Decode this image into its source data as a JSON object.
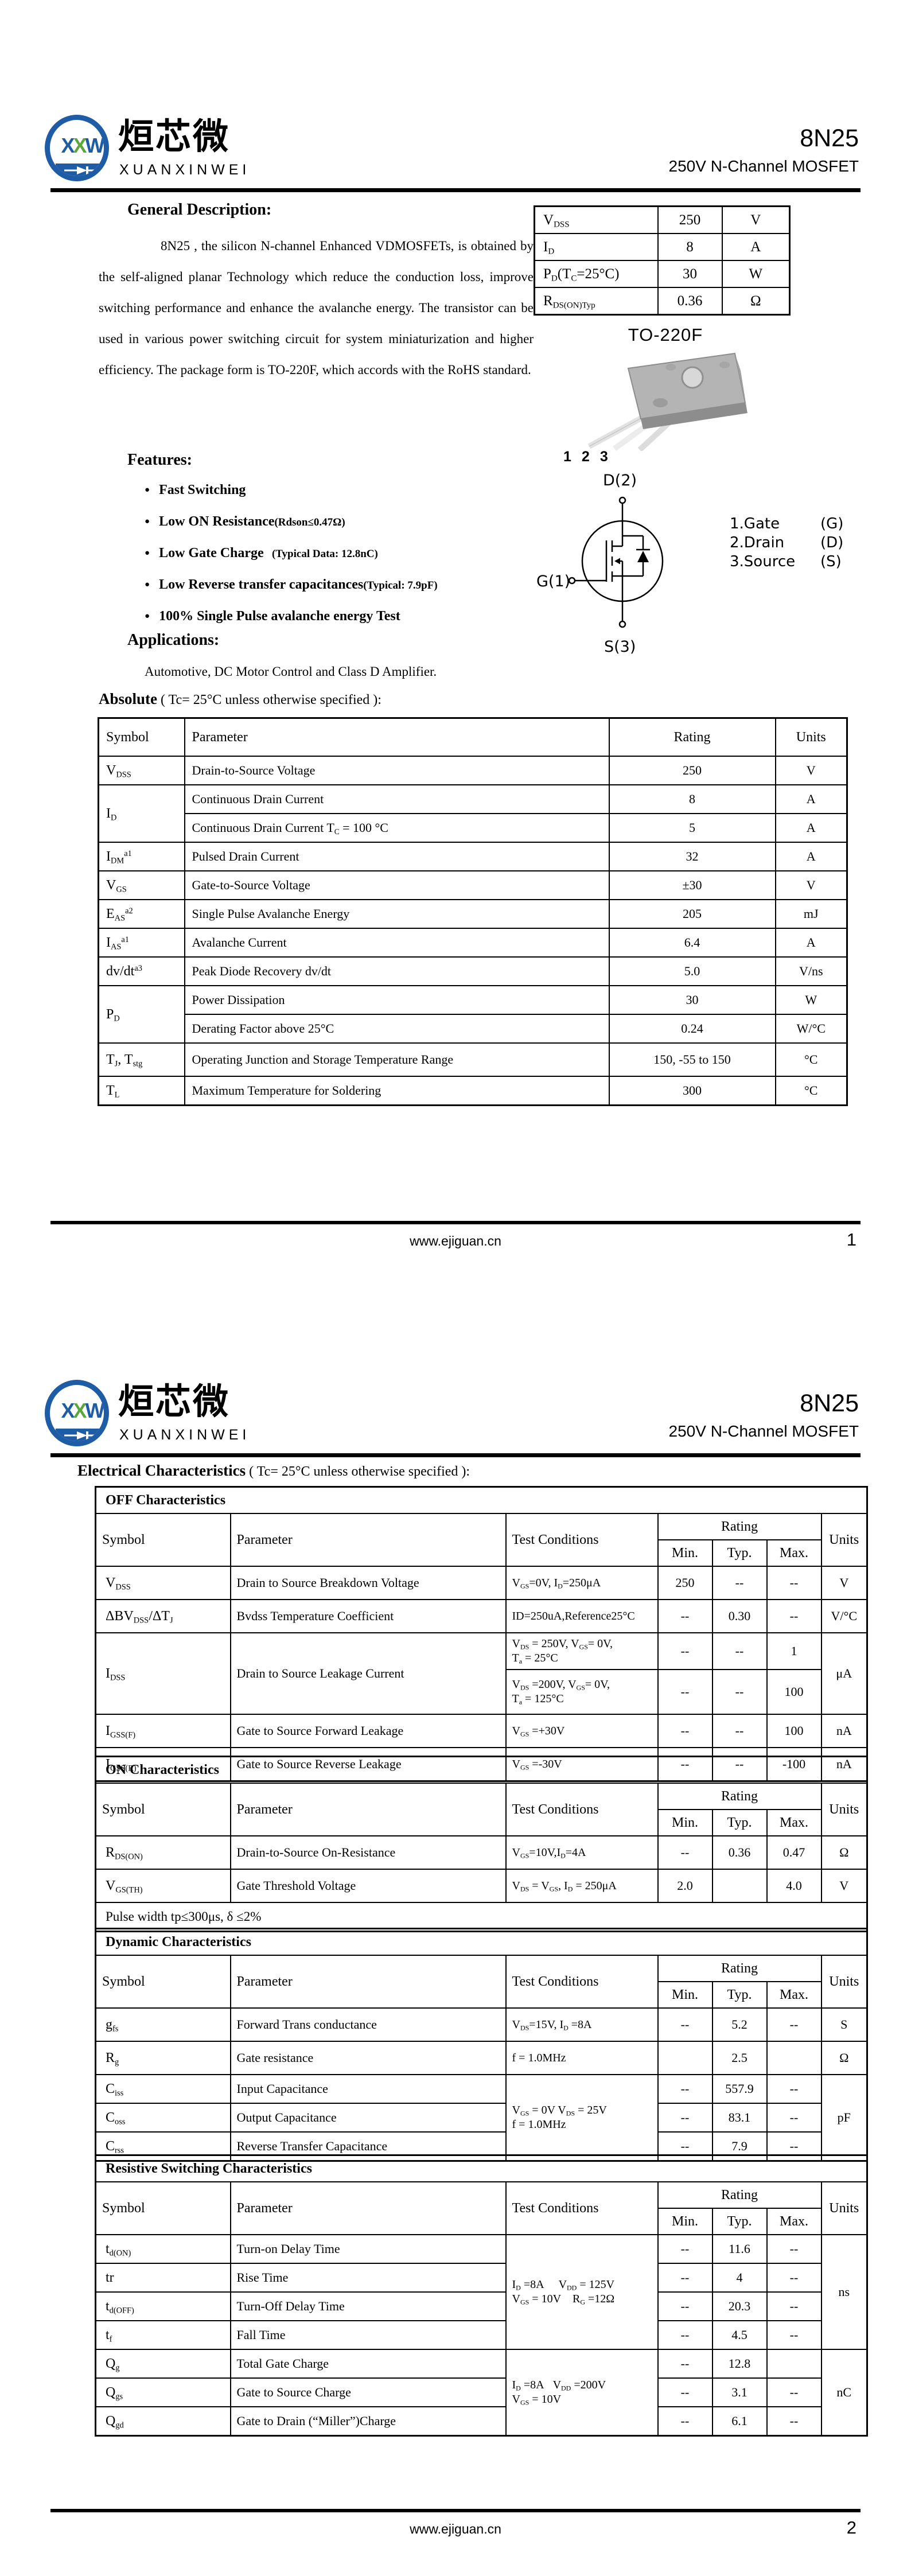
{
  "header": {
    "part": "8N25",
    "subtitle": "250V N-Channel MOSFET",
    "logo_letters": [
      "X",
      "X",
      "W"
    ],
    "brand_cn": "烜芯微",
    "brand_en": "XUANXINWEI"
  },
  "footer": {
    "site": "www.ejiguan.cn",
    "pages": [
      "1",
      "2"
    ]
  },
  "page1": {
    "quick": {
      "rows": [
        {
          "sym": [
            {
              "t": "V"
            },
            {
              "sub": "DSS"
            }
          ],
          "val": "250",
          "unit": "V"
        },
        {
          "sym": [
            {
              "t": "I"
            },
            {
              "sub": "D"
            }
          ],
          "val": "8",
          "unit": "A"
        },
        {
          "sym": [
            {
              "t": "P"
            },
            {
              "sub": "D"
            },
            {
              "t": "(T"
            },
            {
              "sub": "C"
            },
            {
              "t": "=25°C)"
            }
          ],
          "val": "30",
          "unit": "W"
        },
        {
          "sym": [
            {
              "t": "R"
            },
            {
              "sub": "DS(ON)Typ"
            }
          ],
          "val": "0.36",
          "unit": "Ω"
        }
      ]
    },
    "package_name": "TO-220F",
    "pins": [
      "1",
      "2",
      "3"
    ],
    "symbol_labels": {
      "drain": "D(2)",
      "gate": "G(1)",
      "source": "S(3)"
    },
    "pin_legend": [
      {
        "name": "1.Gate",
        "code": "(G)"
      },
      {
        "name": "2.Drain",
        "code": "(D)"
      },
      {
        "name": "3.Source",
        "code": "(S)"
      }
    ],
    "general_heading": "General Description:",
    "description": "8N25 , the silicon N-channel Enhanced VDMOSFETs, is obtained by the self-aligned planar Technology which reduce the conduction loss, improve switching performance and enhance the avalanche energy. The transistor can be used in various power switching circuit for system miniaturization and higher efficiency. The package form is TO-220F, which accords with the RoHS standard.",
    "features_heading": "Features:",
    "features": [
      {
        "main": "Fast Switching",
        "note": ""
      },
      {
        "main": "Low ON Resistance",
        "note": "(Rdson≤0.47Ω)"
      },
      {
        "main": "Low Gate Charge",
        "note": "   (Typical Data: 12.8nC)"
      },
      {
        "main": "Low Reverse transfer capacitances",
        "note": "(Typical: 7.9pF)"
      },
      {
        "main": "100% Single Pulse avalanche energy Test",
        "note": ""
      }
    ],
    "applications_heading": "Applications:",
    "applications_text": "Automotive, DC Motor Control and Class D Amplifier.",
    "abs_heading_bold": "Absolute",
    "abs_heading_rest": "( Tc= 25°C  unless otherwise specified ):",
    "abs": {
      "headers": [
        "Symbol",
        "Parameter",
        "Rating",
        "Units"
      ],
      "rows": [
        {
          "sym": [
            {
              "t": "V"
            },
            {
              "sub": "DSS"
            }
          ],
          "param": "Drain-to-Source Voltage",
          "rating": "250",
          "units": "V"
        },
        {
          "sym": [
            {
              "t": "I"
            },
            {
              "sub": "D"
            }
          ],
          "param": "Continuous Drain Current",
          "rating": "8",
          "units": "A"
        },
        {
          "param": [
            {
              "t": "Continuous Drain Current T"
            },
            {
              "sub": "C"
            },
            {
              "t": " = 100 °C"
            }
          ],
          "rating": "5",
          "units": "A"
        },
        {
          "sym": [
            {
              "t": "I"
            },
            {
              "sub": "DM"
            },
            {
              "sup": "a1"
            }
          ],
          "param": "Pulsed Drain Current",
          "rating": "32",
          "units": "A"
        },
        {
          "sym": [
            {
              "t": "V"
            },
            {
              "sub": "GS"
            }
          ],
          "param": "Gate-to-Source Voltage",
          "rating": "±30",
          "units": "V"
        },
        {
          "sym": [
            {
              "t": "E"
            },
            {
              "sub": "AS"
            },
            {
              "sup": "a2"
            }
          ],
          "param": "Single Pulse Avalanche Energy",
          "rating": "205",
          "units": "mJ"
        },
        {
          "sym": [
            {
              "t": "I"
            },
            {
              "sub": "AS"
            },
            {
              "sup": "a1"
            }
          ],
          "param": "Avalanche Current",
          "rating": "6.4",
          "units": "A"
        },
        {
          "sym": [
            {
              "t": "dv/dt"
            },
            {
              "sup": "a3"
            }
          ],
          "param": "Peak Diode Recovery dv/dt",
          "rating": "5.0",
          "units": "V/ns"
        },
        {
          "sym": [
            {
              "t": "P"
            },
            {
              "sub": "D"
            }
          ],
          "param": "Power Dissipation",
          "rating": "30",
          "units": "W"
        },
        {
          "param": "Derating Factor above 25°C",
          "rating": "0.24",
          "units": "W/°C"
        },
        {
          "sym": [
            {
              "t": "T"
            },
            {
              "sub": "J"
            },
            {
              "t": ",  T"
            },
            {
              "sub": "stg"
            }
          ],
          "param": "Operating Junction and Storage Temperature Range",
          "rating": "150,  -55 to 150",
          "units": "°C"
        },
        {
          "sym": [
            {
              "t": "T"
            },
            {
              "sub": "L"
            }
          ],
          "param": "Maximum Temperature for Soldering",
          "rating": "300",
          "units": "°C"
        }
      ]
    }
  },
  "page2": {
    "elec_heading_bold": "Electrical Characteristics",
    "elec_heading_rest": "( Tc= 25°C  unless otherwise specified ):",
    "col": {
      "symbol": "Symbol",
      "parameter": "Parameter",
      "test": "Test Conditions",
      "rating": "Rating",
      "min": "Min.",
      "typ": "Typ.",
      "max": "Max.",
      "units": "Units"
    },
    "off": {
      "title": "OFF Characteristics",
      "rows": [
        {
          "sym": [
            {
              "t": "V"
            },
            {
              "sub": "DSS"
            }
          ],
          "param": "Drain to Source Breakdown Voltage",
          "test": [
            {
              "t": "V"
            },
            {
              "sub": "GS"
            },
            {
              "t": "=0V, I"
            },
            {
              "sub": "D"
            },
            {
              "t": "=250μA"
            }
          ],
          "min": "250",
          "typ": "--",
          "max": "--",
          "units": "V"
        },
        {
          "sym": [
            {
              "t": "ΔBV"
            },
            {
              "sub": "DSS"
            },
            {
              "t": "/ΔT"
            },
            {
              "sub": "J"
            }
          ],
          "param": "Bvdss Temperature Coefficient",
          "test": "ID=250uA,Reference25°C",
          "min": "--",
          "typ": "0.30",
          "max": "--",
          "units": "V/°C"
        },
        {
          "sym": [
            {
              "t": "I"
            },
            {
              "sub": "DSS"
            }
          ],
          "param": "Drain to Source Leakage Current",
          "test": [
            {
              "t": "V"
            },
            {
              "sub": "DS"
            },
            {
              "t": " = 250V, V"
            },
            {
              "sub": "GS"
            },
            {
              "t": "= 0V,"
            },
            {
              "br": true
            },
            {
              "t": "T"
            },
            {
              "sub": "a"
            },
            {
              "t": " = 25°C"
            }
          ],
          "min": "--",
          "typ": "--",
          "max": "1",
          "units": "μA"
        },
        {
          "test": [
            {
              "t": "V"
            },
            {
              "sub": "DS"
            },
            {
              "t": " =200V, V"
            },
            {
              "sub": "GS"
            },
            {
              "t": "= 0V,"
            },
            {
              "br": true
            },
            {
              "t": "T"
            },
            {
              "sub": "a"
            },
            {
              "t": " = 125°C"
            }
          ],
          "min": "--",
          "typ": "--",
          "max": "100"
        },
        {
          "sym": [
            {
              "t": "I"
            },
            {
              "sub": "GSS(F)"
            }
          ],
          "param": "Gate to Source Forward Leakage",
          "test": [
            {
              "t": "V"
            },
            {
              "sub": "GS"
            },
            {
              "t": " =+30V"
            }
          ],
          "min": "--",
          "typ": "--",
          "max": "100",
          "units": "nA"
        },
        {
          "sym": [
            {
              "t": "I"
            },
            {
              "sub": "GSS(R)"
            }
          ],
          "param": "Gate to Source Reverse Leakage",
          "test": [
            {
              "t": "V"
            },
            {
              "sub": "GS"
            },
            {
              "t": " =-30V"
            }
          ],
          "min": "--",
          "typ": "--",
          "max": "-100",
          "units": "nA"
        }
      ]
    },
    "on": {
      "title": "ON Characteristics",
      "rows": [
        {
          "sym": [
            {
              "t": "R"
            },
            {
              "sub": "DS(ON)"
            }
          ],
          "param": "Drain-to-Source On-Resistance",
          "test": [
            {
              "t": "V"
            },
            {
              "sub": "GS"
            },
            {
              "t": "=10V,I"
            },
            {
              "sub": "D"
            },
            {
              "t": "=4A"
            }
          ],
          "min": "--",
          "typ": "0.36",
          "max": "0.47",
          "units": "Ω"
        },
        {
          "sym": [
            {
              "t": "V"
            },
            {
              "sub": "GS(TH)"
            }
          ],
          "param": "Gate Threshold Voltage",
          "test": [
            {
              "t": "V"
            },
            {
              "sub": "DS"
            },
            {
              "t": " = V"
            },
            {
              "sub": "GS"
            },
            {
              "t": ", I"
            },
            {
              "sub": "D"
            },
            {
              "t": " = 250μA"
            }
          ],
          "min": "2.0",
          "typ": "",
          "max": "4.0",
          "units": "V"
        }
      ],
      "note": "Pulse width tp≤300μs, δ ≤2%"
    },
    "dyn": {
      "title": "Dynamic Characteristics",
      "rows": [
        {
          "sym": [
            {
              "t": "g"
            },
            {
              "sub": "fs"
            }
          ],
          "param": "Forward Trans conductance",
          "test": [
            {
              "t": "V"
            },
            {
              "sub": "DS"
            },
            {
              "t": "=15V, I"
            },
            {
              "sub": "D"
            },
            {
              "t": " =8A"
            }
          ],
          "min": "--",
          "typ": "5.2",
          "max": "--",
          "units": "S"
        },
        {
          "sym": [
            {
              "t": "R"
            },
            {
              "sub": "g"
            }
          ],
          "param": "Gate resistance",
          "test": "f = 1.0MHz",
          "min": "",
          "typ": "2.5",
          "max": "",
          "units": "Ω"
        },
        {
          "sym": [
            {
              "t": "C"
            },
            {
              "sub": "iss"
            }
          ],
          "param": "Input Capacitance",
          "test": [
            {
              "t": "V"
            },
            {
              "sub": "GS"
            },
            {
              "t": " = 0V V"
            },
            {
              "sub": "DS"
            },
            {
              "t": " = 25V"
            },
            {
              "br": true
            },
            {
              "t": "f = 1.0MHz"
            }
          ],
          "min": "--",
          "typ": "557.9",
          "max": "--",
          "units": "pF"
        },
        {
          "sym": [
            {
              "t": "C"
            },
            {
              "sub": "oss"
            }
          ],
          "param": "Output Capacitance",
          "min": "--",
          "typ": "83.1",
          "max": "--"
        },
        {
          "sym": [
            {
              "t": "C"
            },
            {
              "sub": "rss"
            }
          ],
          "param": "Reverse Transfer Capacitance",
          "min": "--",
          "typ": "7.9",
          "max": "--"
        }
      ]
    },
    "sw": {
      "title": "Resistive Switching Characteristics",
      "rows": [
        {
          "sym": [
            {
              "t": "t"
            },
            {
              "sub": "d(ON)"
            }
          ],
          "param": "Turn-on Delay Time",
          "test": [
            {
              "t": "I"
            },
            {
              "sub": "D"
            },
            {
              "t": " =8A     V"
            },
            {
              "sub": "DD"
            },
            {
              "t": " = 125V"
            },
            {
              "br": true
            },
            {
              "t": "V"
            },
            {
              "sub": "GS"
            },
            {
              "t": " = 10V    R"
            },
            {
              "sub": "G"
            },
            {
              "t": " =12Ω"
            }
          ],
          "min": "--",
          "typ": "11.6",
          "max": "--",
          "units": "ns"
        },
        {
          "sym": "tr",
          "param": "Rise Time",
          "min": "--",
          "typ": "4",
          "max": "--"
        },
        {
          "sym": [
            {
              "t": "t"
            },
            {
              "sub": "d(OFF)"
            }
          ],
          "param": "Turn-Off Delay Time",
          "min": "--",
          "typ": "20.3",
          "max": "--"
        },
        {
          "sym": [
            {
              "t": "t"
            },
            {
              "sub": "f"
            }
          ],
          "param": "Fall Time",
          "min": "--",
          "typ": "4.5",
          "max": "--"
        },
        {
          "sym": [
            {
              "t": "Q"
            },
            {
              "sub": "g"
            }
          ],
          "param": "Total Gate Charge",
          "test": [
            {
              "t": "I"
            },
            {
              "sub": "D"
            },
            {
              "t": " =8A   V"
            },
            {
              "sub": "DD"
            },
            {
              "t": " =200V"
            },
            {
              "br": true
            },
            {
              "t": "V"
            },
            {
              "sub": "GS"
            },
            {
              "t": " = 10V"
            }
          ],
          "min": "--",
          "typ": "12.8",
          "max": "",
          "units": "nC"
        },
        {
          "sym": [
            {
              "t": "Q"
            },
            {
              "sub": "gs"
            }
          ],
          "param": "Gate to Source Charge",
          "min": "--",
          "typ": "3.1",
          "max": "--"
        },
        {
          "sym": [
            {
              "t": "Q"
            },
            {
              "sub": "gd"
            }
          ],
          "param": "Gate to Drain (“Miller”)Charge",
          "min": "--",
          "typ": "6.1",
          "max": "--"
        }
      ]
    }
  }
}
